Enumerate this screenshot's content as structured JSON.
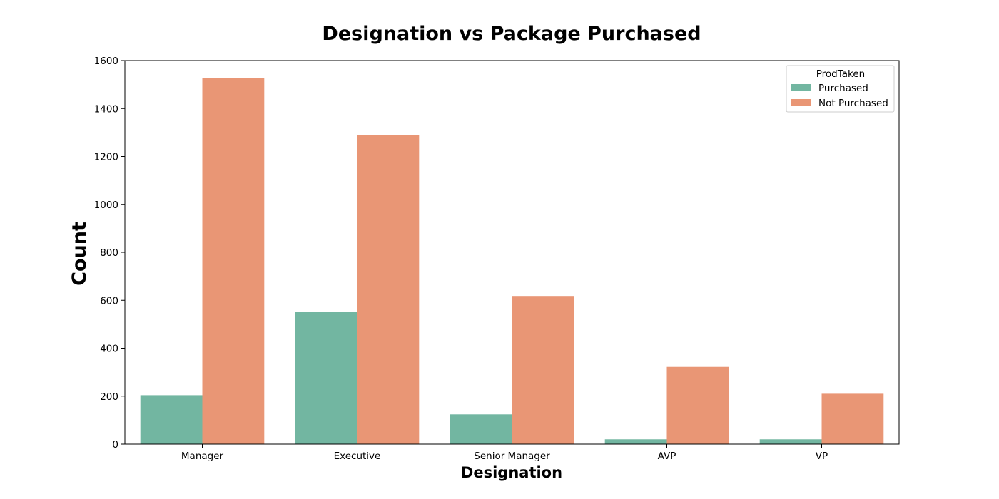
{
  "chart_data": {
    "type": "bar",
    "title": "Designation vs Package Purchased",
    "xlabel": "Designation",
    "ylabel": "Count",
    "categories": [
      "Manager",
      "Executive",
      "Senior Manager",
      "AVP",
      "VP"
    ],
    "series": [
      {
        "name": "Purchased",
        "values": [
          204,
          552,
          124,
          20,
          20
        ]
      },
      {
        "name": "Not Purchased",
        "values": [
          1528,
          1290,
          618,
          322,
          210
        ]
      }
    ],
    "ylim": [
      0,
      1600
    ],
    "yticks": [
      0,
      200,
      400,
      600,
      800,
      1000,
      1200,
      1400,
      1600
    ],
    "legend": {
      "title": "ProdTaken",
      "placement": "top-right"
    },
    "grid": false,
    "colors": {
      "Purchased": "#72b6a1",
      "Not Purchased": "#e99675"
    }
  }
}
